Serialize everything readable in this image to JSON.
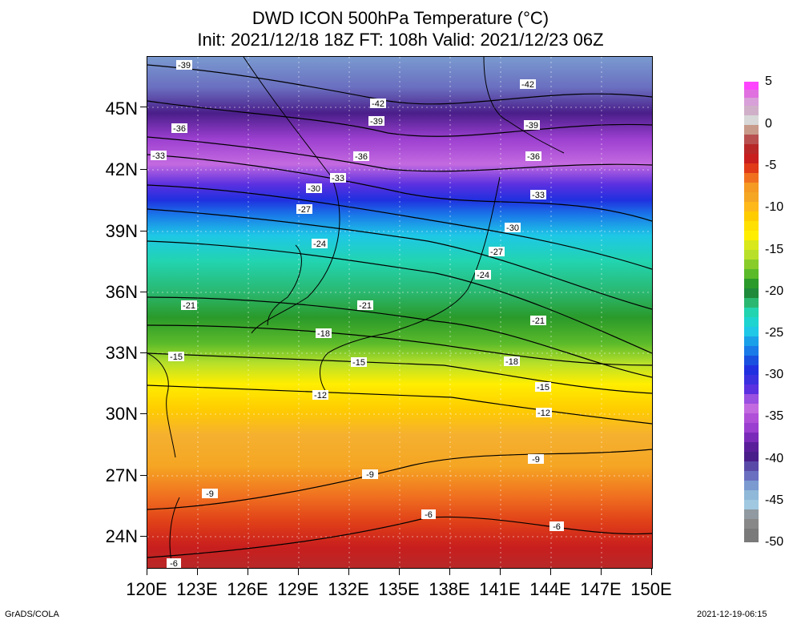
{
  "title_line1": "DWD ICON 500hPa Temperature (°C)",
  "title_line2": "Init: 2021/12/18 18Z  FT: 108h  Valid: 2021/12/23 06Z",
  "footer_left": "GrADS/COLA",
  "footer_right": "2021-12-19-06:15",
  "lat_labels": [
    "45N",
    "42N",
    "39N",
    "36N",
    "33N",
    "30N",
    "27N",
    "24N"
  ],
  "lon_labels": [
    "120E",
    "123E",
    "126E",
    "129E",
    "132E",
    "135E",
    "138E",
    "141E",
    "144E",
    "147E",
    "150E"
  ],
  "colorbar_labels": [
    "5",
    "0",
    "-5",
    "-10",
    "-15",
    "-20",
    "-25",
    "-30",
    "-35",
    "-40",
    "-45",
    "-50"
  ],
  "contour_labels": [
    "-42",
    "-39",
    "-36",
    "-33",
    "-30",
    "-27",
    "-24",
    "-21",
    "-18",
    "-15",
    "-12",
    "-9",
    "-6"
  ],
  "colors": {
    "warm_red": "#c81e1e",
    "orange": "#f5a623",
    "yellow": "#ffee00",
    "green": "#2a9a2a",
    "cyan": "#1ec8e6",
    "blue": "#2030e0",
    "purple": "#9b3fd0",
    "dark_purple": "#4a1e8a"
  }
}
